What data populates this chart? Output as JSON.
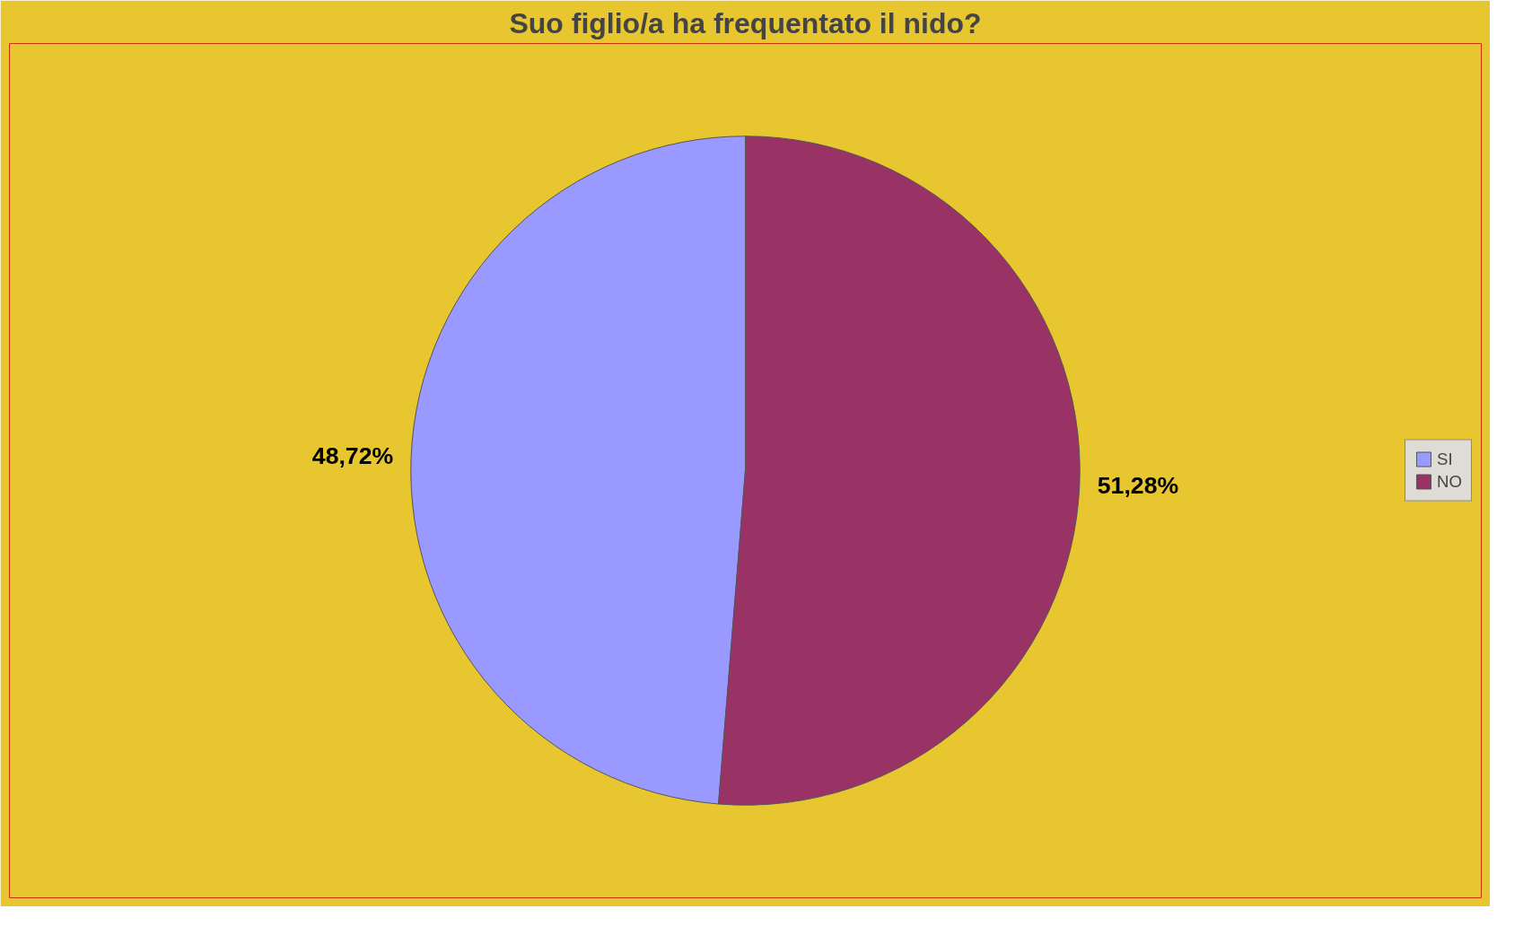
{
  "chart_data": {
    "type": "pie",
    "title": "Suo figlio/a ha frequentato il nido?",
    "categories": [
      "SI",
      "NO"
    ],
    "values": [
      48.72,
      51.28
    ],
    "colors": [
      "#9999ff",
      "#993366"
    ],
    "value_labels": [
      "48,72%",
      "51,28%"
    ],
    "legend": "right"
  }
}
